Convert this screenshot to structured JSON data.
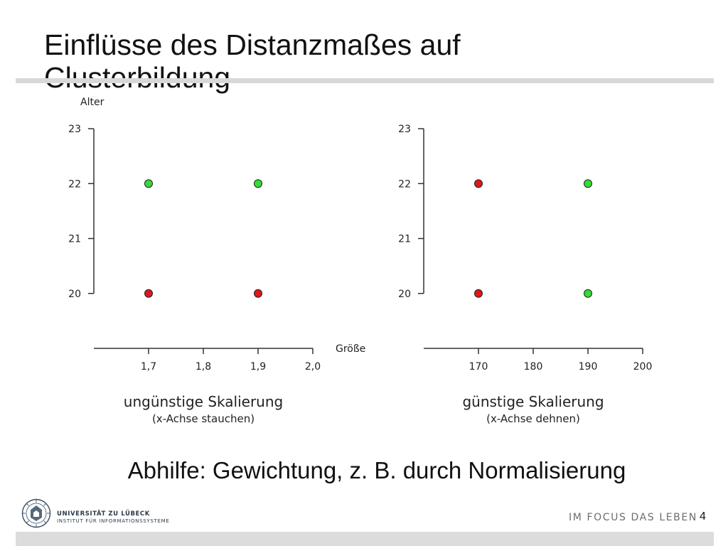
{
  "slide": {
    "title": "Einflüsse des Distanzmaßes auf Clusterbildung",
    "hint": "Abhilfe: Gewichtung, z. B. durch Normalisierung",
    "page_number": "4"
  },
  "chart_data": [
    {
      "type": "scatter",
      "ylabel": "Alter",
      "xlabel": "Größe",
      "x_ticks": [
        "1,7",
        "1,8",
        "1,9",
        "2,0"
      ],
      "y_ticks": [
        "20",
        "21",
        "22",
        "23"
      ],
      "xlim": [
        1.6,
        2.0
      ],
      "ylim": [
        19.0,
        23.0
      ],
      "points": [
        {
          "x": 1.7,
          "y": 22,
          "color": "#33dd33"
        },
        {
          "x": 1.9,
          "y": 22,
          "color": "#33dd33"
        },
        {
          "x": 1.7,
          "y": 20,
          "color": "#e0161c"
        },
        {
          "x": 1.9,
          "y": 20,
          "color": "#e0161c"
        }
      ],
      "caption": "ungünstige Skalierung",
      "subcaption": "(x-Achse stauchen)"
    },
    {
      "type": "scatter",
      "ylabel": "",
      "xlabel": "",
      "x_ticks": [
        "170",
        "180",
        "190",
        "200"
      ],
      "y_ticks": [
        "20",
        "21",
        "22",
        "23"
      ],
      "xlim": [
        160,
        200
      ],
      "ylim": [
        19.0,
        23.0
      ],
      "points": [
        {
          "x": 170,
          "y": 22,
          "color": "#e0161c"
        },
        {
          "x": 190,
          "y": 22,
          "color": "#33dd33"
        },
        {
          "x": 170,
          "y": 20,
          "color": "#e0161c"
        },
        {
          "x": 190,
          "y": 20,
          "color": "#33dd33"
        }
      ],
      "caption": "günstige Skalierung",
      "subcaption": "(x-Achse dehnen)"
    }
  ],
  "footer": {
    "university": "UNIVERSITÄT ZU LÜBECK",
    "institute": "INSTITUT FÜR INFORMATIONSSYSTEME",
    "slogan": "IM FOCUS DAS LEBEN",
    "seal_text": "UNIVERSITAS LUBECENSIS"
  }
}
